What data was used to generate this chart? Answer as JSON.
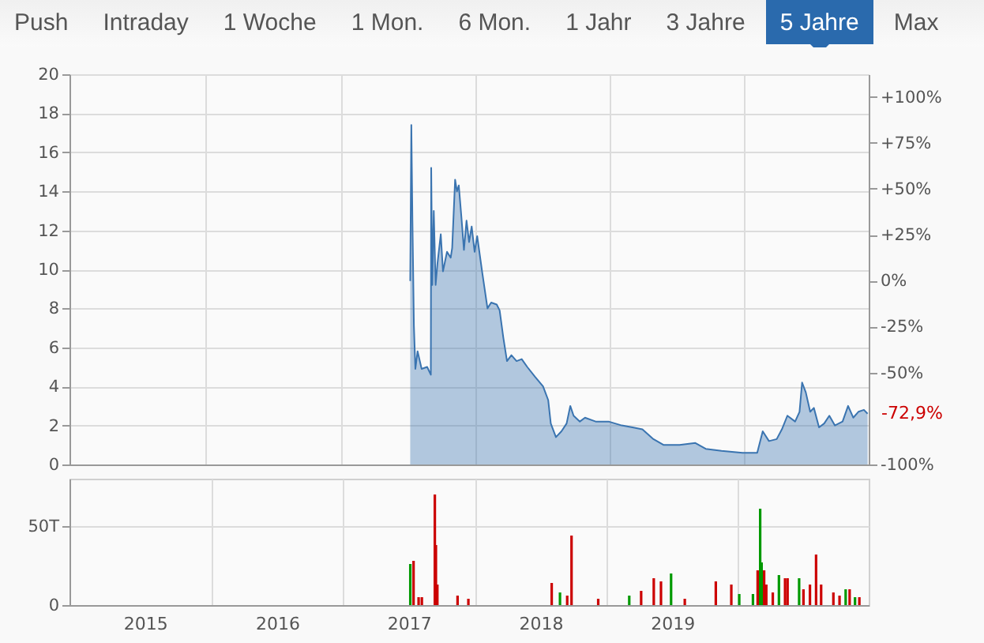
{
  "chart_data": [
    {
      "type": "other",
      "annotations": [
        "Push",
        "Intraday",
        "1 Woche",
        "1 Mon.",
        "6 Mon.",
        "1 Jahr",
        "3 Jahre",
        "5 Jahre",
        "Max"
      ]
    },
    {
      "type": "area",
      "color": "#3a74b0",
      "x": [
        "2017-07-09",
        "2017-07-12",
        "2017-07-15",
        "2017-07-19",
        "2017-07-23",
        "2017-07-29",
        "2017-08-09",
        "2017-08-24",
        "2017-09-03",
        "2017-09-04",
        "2017-09-07",
        "2017-09-11",
        "2017-09-16",
        "2017-09-21",
        "2017-09-30",
        "2017-10-06",
        "2017-10-17",
        "2017-10-27",
        "2017-10-31",
        "2017-11-08",
        "2017-11-13",
        "2017-11-18",
        "2017-11-25",
        "2017-12-02",
        "2017-12-09",
        "2017-12-16",
        "2017-12-23",
        "2017-12-31",
        "2018-01-07",
        "2018-01-21",
        "2018-02-04",
        "2018-02-14",
        "2018-03-01",
        "2018-03-09",
        "2018-03-19",
        "2018-03-29",
        "2018-04-10",
        "2018-04-24",
        "2018-05-08",
        "2018-05-23",
        "2018-06-13",
        "2018-07-05",
        "2018-07-19",
        "2018-07-26",
        "2018-08-09",
        "2018-08-24",
        "2018-09-07",
        "2018-09-17",
        "2018-09-26",
        "2018-10-13",
        "2018-10-27",
        "2018-11-25",
        "2018-12-30",
        "2019-02-04",
        "2019-03-05",
        "2019-04-01",
        "2019-05-01",
        "2019-05-29",
        "2019-07-11",
        "2019-08-23",
        "2019-09-20",
        "2019-11-02",
        "2019-12-29",
        "2020-02-07",
        "2020-02-22",
        "2020-03-10",
        "2020-03-31",
        "2020-04-14",
        "2020-04-29",
        "2020-05-20",
        "2020-06-01",
        "2020-06-08",
        "2020-06-18",
        "2020-06-30",
        "2020-07-10",
        "2020-07-24",
        "2020-08-07",
        "2020-08-21",
        "2020-09-05",
        "2020-09-26",
        "2020-10-11",
        "2020-10-25",
        "2020-11-08",
        "2020-11-23",
        "2020-12-03"
      ],
      "values": [
        9.4,
        17.4,
        12.5,
        7.1,
        4.9,
        5.8,
        4.9,
        5.0,
        4.6,
        15.2,
        9.2,
        13.0,
        9.2,
        10.3,
        11.8,
        9.9,
        10.9,
        10.6,
        11.1,
        14.6,
        14.0,
        14.3,
        12.7,
        11.0,
        12.5,
        11.4,
        12.2,
        10.9,
        11.7,
        9.8,
        8.0,
        8.3,
        8.2,
        7.9,
        6.5,
        5.3,
        5.6,
        5.3,
        5.4,
        5.0,
        4.5,
        4.0,
        3.3,
        2.1,
        1.4,
        1.7,
        2.1,
        3.0,
        2.5,
        2.2,
        2.4,
        2.2,
        2.2,
        2.0,
        1.9,
        1.8,
        1.3,
        1.0,
        1.0,
        1.1,
        0.8,
        0.7,
        0.6,
        0.6,
        1.7,
        1.2,
        1.3,
        1.8,
        2.5,
        2.2,
        2.7,
        4.2,
        3.7,
        2.7,
        2.9,
        1.9,
        2.1,
        2.5,
        2.0,
        2.2,
        3.0,
        2.4,
        2.7,
        2.8,
        2.6
      ],
      "xlim": [
        "2014-12-26",
        "2020-12-06"
      ],
      "xticks": [
        {
          "value": "2016-01-01",
          "label": null
        },
        {
          "value": "2017-01-01",
          "label": null
        },
        {
          "value": "2018-01-01",
          "label": null
        },
        {
          "value": "2019-01-01",
          "label": null
        },
        {
          "value": "2020-01-01",
          "label": null
        }
      ],
      "ylim": [
        0,
        20
      ],
      "yticks": [
        0,
        2,
        4,
        6,
        8,
        10,
        12,
        14,
        16,
        18,
        20
      ],
      "y2lim": [
        -100,
        112.3
      ],
      "y2ticks": [
        {
          "value": -100,
          "label": "-100%"
        },
        {
          "value": -50,
          "label": "-50%"
        },
        {
          "value": -25,
          "label": "-25%"
        },
        {
          "value": 0,
          "label": "0%"
        },
        {
          "value": 25,
          "label": "+25%"
        },
        {
          "value": 50,
          "label": "+50%"
        },
        {
          "value": 75,
          "label": "+75%"
        },
        {
          "value": 100,
          "label": "+100%"
        }
      ],
      "annotations": [
        "-72,9%"
      ],
      "grid": true,
      "tick_labels": "y"
    },
    {
      "type": "bar",
      "series": [
        {
          "color": "#cc0000",
          "x": [
            "2017-07-15",
            "2017-07-29",
            "2017-08-07",
            "2017-09-12",
            "2017-09-15",
            "2017-09-19",
            "2017-11-14",
            "2017-12-14",
            "2018-08-02",
            "2018-09-14",
            "2018-09-26",
            "2018-12-09",
            "2019-04-07",
            "2019-05-12",
            "2019-06-01",
            "2019-08-06",
            "2019-10-31",
            "2019-12-13",
            "2020-02-24",
            "2020-03-13",
            "2020-03-19",
            "2020-04-06",
            "2020-05-10",
            "2020-05-17",
            "2020-06-30",
            "2020-07-18",
            "2020-08-04",
            "2020-08-18",
            "2020-09-21",
            "2020-10-08",
            "2020-11-05",
            "2020-12-02"
          ],
          "values": [
            28,
            5,
            5,
            70,
            38,
            13,
            6,
            4,
            14,
            6,
            44,
            4,
            9,
            17,
            15,
            4,
            15,
            13,
            22,
            22,
            13,
            8,
            17,
            17,
            10,
            13,
            32,
            13,
            8,
            6,
            10,
            5
          ]
        },
        {
          "color": "#009900",
          "x": [
            "2017-07-06",
            "2018-08-25",
            "2019-03-05",
            "2019-06-29",
            "2020-01-04",
            "2020-02-11",
            "2020-03-02",
            "2020-03-06",
            "2020-04-23",
            "2020-06-18",
            "2020-10-25",
            "2020-11-20"
          ],
          "values": [
            26,
            8,
            6,
            20,
            7,
            7,
            61,
            27,
            19,
            17,
            10,
            5
          ]
        }
      ],
      "xlim": [
        "2014-12-26",
        "2020-12-06"
      ],
      "xticks": [
        {
          "value": "2015-07-02",
          "label": "2015"
        },
        {
          "value": "2016-01-01",
          "label": null
        },
        {
          "value": "2016-07-02",
          "label": "2016"
        },
        {
          "value": "2017-01-01",
          "label": null
        },
        {
          "value": "2017-07-02",
          "label": "2017"
        },
        {
          "value": "2018-01-01",
          "label": null
        },
        {
          "value": "2018-07-02",
          "label": "2018"
        },
        {
          "value": "2019-01-01",
          "label": null
        },
        {
          "value": "2019-07-02",
          "label": "2019"
        },
        {
          "value": "2020-01-01",
          "label": null
        }
      ],
      "ylim": [
        0,
        80
      ],
      "yticks": [
        0,
        {
          "value": 50,
          "label": "50T"
        }
      ],
      "grid": true
    }
  ]
}
